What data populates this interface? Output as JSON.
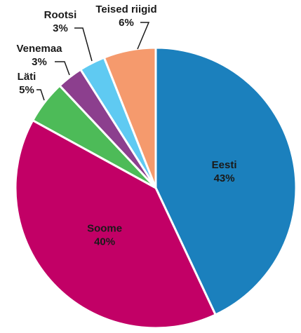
{
  "chart_data": {
    "type": "pie",
    "categories": [
      "Eesti",
      "Soome",
      "Läti",
      "Venemaa",
      "Rootsi",
      "Teised riigid"
    ],
    "values": [
      43,
      40,
      5,
      3,
      3,
      6
    ],
    "value_labels": [
      "43%",
      "40%",
      "5%",
      "3%",
      "3%",
      "6%"
    ],
    "colors": [
      "#1b80bd",
      "#c20066",
      "#4dbb58",
      "#8c3f8e",
      "#5fcaf2",
      "#f59a6d"
    ]
  }
}
